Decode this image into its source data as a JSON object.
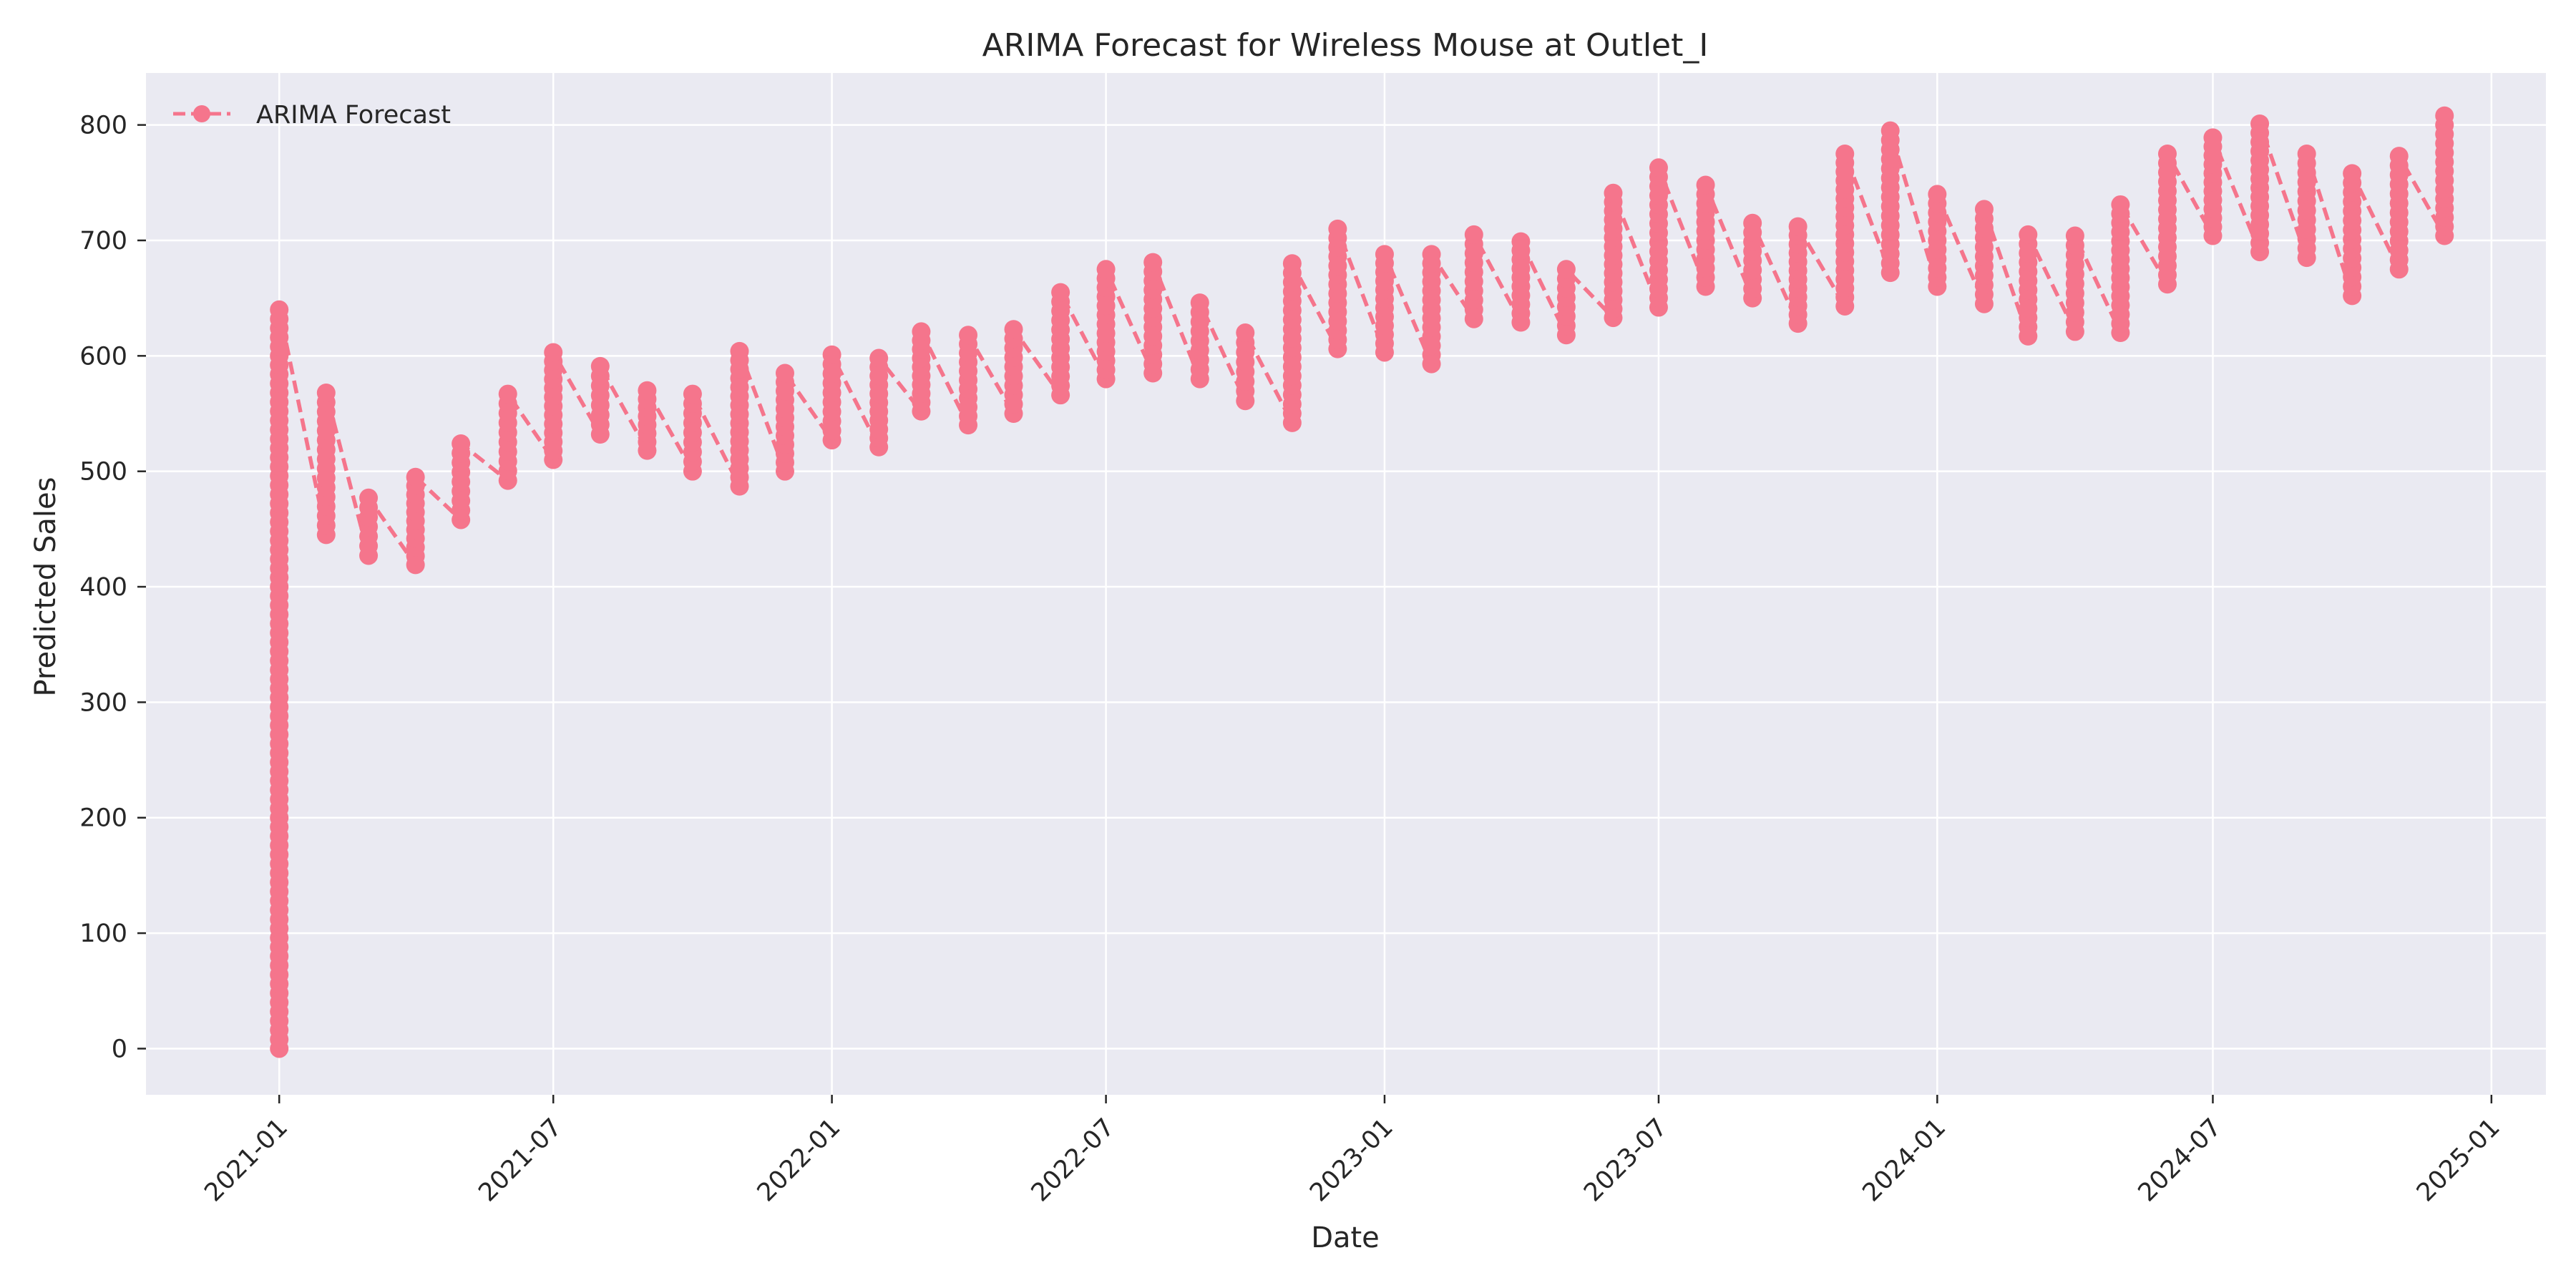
{
  "chart_data": {
    "type": "line",
    "title": "ARIMA Forecast for Wireless Mouse at Outlet_I",
    "xlabel": "Date",
    "ylabel": "Predicted Sales",
    "xlim": [
      "2020-10-05",
      "2025-02-06"
    ],
    "ylim": [
      -40,
      845
    ],
    "x_ticks": [
      "2021-01",
      "2021-07",
      "2022-01",
      "2022-07",
      "2023-01",
      "2023-07",
      "2024-01",
      "2024-07",
      "2025-01"
    ],
    "y_ticks": [
      0,
      100,
      200,
      300,
      400,
      500,
      600,
      700,
      800
    ],
    "grid": true,
    "legend": {
      "position": "upper-left",
      "entries": [
        "ARIMA Forecast"
      ]
    },
    "colors": {
      "series": "#f5758c",
      "plot_bg": "#eaeaf2",
      "grid": "#ffffff"
    },
    "series": [
      {
        "name": "ARIMA Forecast",
        "style": "dashed line with circle markers",
        "x": [
          "2021-01-01",
          "2021-02-01",
          "2021-03-01",
          "2021-04-01",
          "2021-05-01",
          "2021-06-01",
          "2021-07-01",
          "2021-08-01",
          "2021-09-01",
          "2021-10-01",
          "2021-11-01",
          "2021-12-01",
          "2022-01-01",
          "2022-02-01",
          "2022-03-01",
          "2022-04-01",
          "2022-05-01",
          "2022-06-01",
          "2022-07-01",
          "2022-08-01",
          "2022-09-01",
          "2022-10-01",
          "2022-11-01",
          "2022-12-01",
          "2023-01-01",
          "2023-02-01",
          "2023-03-01",
          "2023-04-01",
          "2023-05-01",
          "2023-06-01",
          "2023-07-01",
          "2023-08-01",
          "2023-09-01",
          "2023-10-01",
          "2023-11-01",
          "2023-12-01",
          "2024-01-01",
          "2024-02-01",
          "2024-03-01",
          "2024-04-01",
          "2024-05-01",
          "2024-06-01",
          "2024-07-01",
          "2024-08-01",
          "2024-09-01",
          "2024-10-01",
          "2024-11-01",
          "2024-12-01"
        ],
        "ranges": [
          [
            0,
            640
          ],
          [
            445,
            568
          ],
          [
            427,
            477
          ],
          [
            419,
            495
          ],
          [
            458,
            524
          ],
          [
            492,
            567
          ],
          [
            510,
            603
          ],
          [
            532,
            591
          ],
          [
            518,
            570
          ],
          [
            500,
            567
          ],
          [
            487,
            604
          ],
          [
            500,
            585
          ],
          [
            527,
            601
          ],
          [
            521,
            598
          ],
          [
            552,
            621
          ],
          [
            540,
            618
          ],
          [
            550,
            623
          ],
          [
            566,
            655
          ],
          [
            580,
            675
          ],
          [
            585,
            681
          ],
          [
            580,
            646
          ],
          [
            561,
            620
          ],
          [
            542,
            680
          ],
          [
            606,
            710
          ],
          [
            603,
            688
          ],
          [
            593,
            688
          ],
          [
            632,
            705
          ],
          [
            629,
            699
          ],
          [
            618,
            675
          ],
          [
            633,
            741
          ],
          [
            642,
            763
          ],
          [
            660,
            748
          ],
          [
            650,
            715
          ],
          [
            628,
            712
          ],
          [
            643,
            775
          ],
          [
            672,
            795
          ],
          [
            660,
            740
          ],
          [
            645,
            727
          ],
          [
            617,
            705
          ],
          [
            621,
            704
          ],
          [
            620,
            731
          ],
          [
            662,
            775
          ],
          [
            704,
            789
          ],
          [
            690,
            801
          ],
          [
            685,
            775
          ],
          [
            652,
            758
          ],
          [
            675,
            773
          ],
          [
            704,
            808
          ]
        ]
      }
    ]
  }
}
